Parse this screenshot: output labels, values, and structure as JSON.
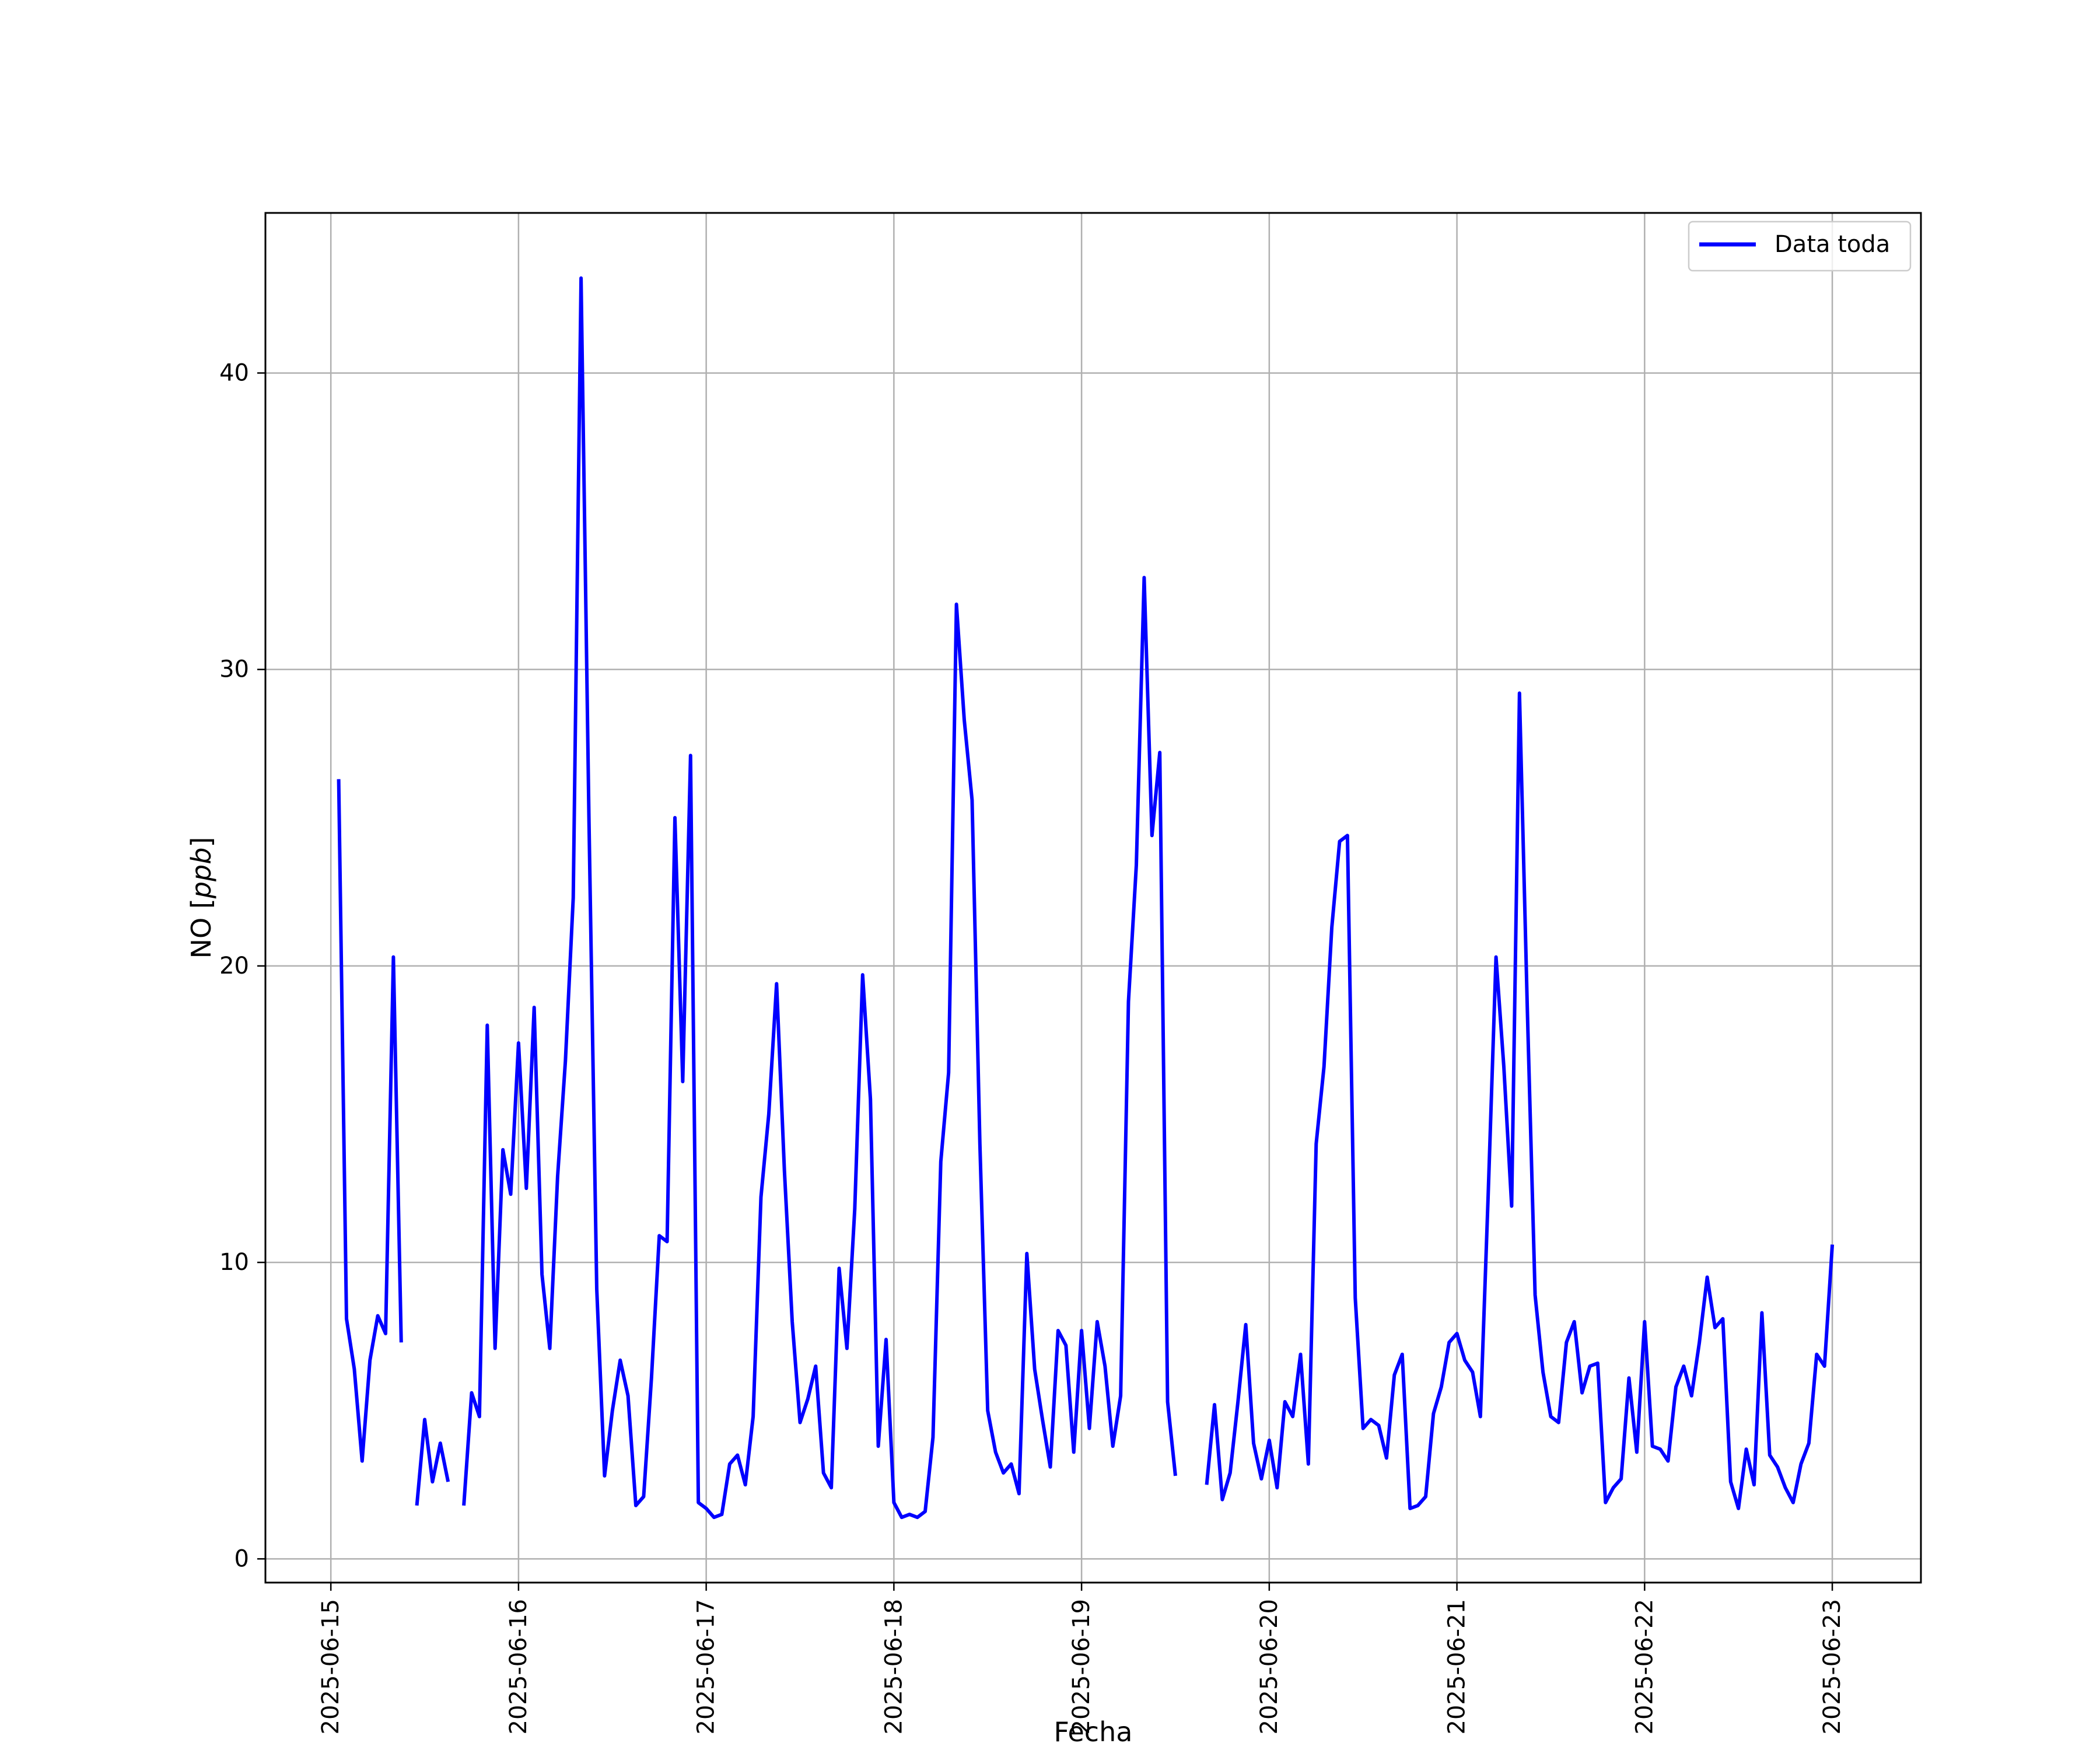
{
  "chart_data": {
    "type": "line",
    "title": "",
    "xlabel": "Fecha",
    "ylabel": "NO [ppb]",
    "ylabel_parts": {
      "main": "NO [",
      "italic": "ppb",
      "close": "]"
    },
    "x_tick_labels": [
      "2025-06-15",
      "2025-06-16",
      "2025-06-17",
      "2025-06-18",
      "2025-06-19",
      "2025-06-20",
      "2025-06-21",
      "2025-06-22",
      "2025-06-23"
    ],
    "y_tick_labels": [
      "0",
      "10",
      "20",
      "30",
      "40"
    ],
    "y_ticks": [
      0,
      10,
      20,
      30,
      40
    ],
    "xlim": [
      "2025-06-14 15:38",
      "2025-06-23 11:20"
    ],
    "ylim": [
      -0.8,
      45.4
    ],
    "grid": true,
    "legend_position": "top-right",
    "series": [
      {
        "name": "Data toda",
        "color": "#0000ff",
        "points": [
          [
            "2025-06-15 01:00",
            26.3
          ],
          [
            "2025-06-15 02:00",
            8.1
          ],
          [
            "2025-06-15 03:00",
            6.4
          ],
          [
            "2025-06-15 04:00",
            3.3
          ],
          [
            "2025-06-15 05:00",
            6.7
          ],
          [
            "2025-06-15 06:00",
            8.2
          ],
          [
            "2025-06-15 07:00",
            7.6
          ],
          [
            "2025-06-15 08:00",
            20.3
          ],
          [
            "2025-06-15 09:00",
            7.3
          ],
          [
            "2025-06-15 10:00",
            null
          ],
          [
            "2025-06-15 11:00",
            1.8
          ],
          [
            "2025-06-15 12:00",
            4.7
          ],
          [
            "2025-06-15 13:00",
            2.6
          ],
          [
            "2025-06-15 14:00",
            3.9
          ],
          [
            "2025-06-15 15:00",
            2.6
          ],
          [
            "2025-06-15 16:00",
            null
          ],
          [
            "2025-06-15 17:00",
            1.8
          ],
          [
            "2025-06-15 18:00",
            5.6
          ],
          [
            "2025-06-15 19:00",
            4.8
          ],
          [
            "2025-06-15 20:00",
            18.0
          ],
          [
            "2025-06-15 21:00",
            7.1
          ],
          [
            "2025-06-15 22:00",
            13.8
          ],
          [
            "2025-06-15 23:00",
            12.3
          ],
          [
            "2025-06-16 00:00",
            17.4
          ],
          [
            "2025-06-16 01:00",
            12.5
          ],
          [
            "2025-06-16 02:00",
            18.6
          ],
          [
            "2025-06-16 03:00",
            9.6
          ],
          [
            "2025-06-16 04:00",
            7.1
          ],
          [
            "2025-06-16 05:00",
            12.9
          ],
          [
            "2025-06-16 06:00",
            16.8
          ],
          [
            "2025-06-16 07:00",
            22.3
          ],
          [
            "2025-06-16 08:00",
            43.2
          ],
          [
            "2025-06-16 09:00",
            25.0
          ],
          [
            "2025-06-16 10:00",
            9.1
          ],
          [
            "2025-06-16 11:00",
            2.8
          ],
          [
            "2025-06-16 12:00",
            5.0
          ],
          [
            "2025-06-16 13:00",
            6.7
          ],
          [
            "2025-06-16 14:00",
            5.5
          ],
          [
            "2025-06-16 15:00",
            1.8
          ],
          [
            "2025-06-16 16:00",
            2.1
          ],
          [
            "2025-06-16 17:00",
            6.1
          ],
          [
            "2025-06-16 18:00",
            10.9
          ],
          [
            "2025-06-16 19:00",
            10.7
          ],
          [
            "2025-06-16 20:00",
            25.0
          ],
          [
            "2025-06-16 21:00",
            16.1
          ],
          [
            "2025-06-16 22:00",
            27.1
          ],
          [
            "2025-06-16 23:00",
            1.9
          ],
          [
            "2025-06-17 00:00",
            1.7
          ],
          [
            "2025-06-17 01:00",
            1.4
          ],
          [
            "2025-06-17 02:00",
            1.5
          ],
          [
            "2025-06-17 03:00",
            3.2
          ],
          [
            "2025-06-17 04:00",
            3.5
          ],
          [
            "2025-06-17 05:00",
            2.5
          ],
          [
            "2025-06-17 06:00",
            4.8
          ],
          [
            "2025-06-17 07:00",
            12.2
          ],
          [
            "2025-06-17 08:00",
            15.0
          ],
          [
            "2025-06-17 09:00",
            19.4
          ],
          [
            "2025-06-17 10:00",
            13.1
          ],
          [
            "2025-06-17 11:00",
            8.0
          ],
          [
            "2025-06-17 12:00",
            4.6
          ],
          [
            "2025-06-17 13:00",
            5.4
          ],
          [
            "2025-06-17 14:00",
            6.5
          ],
          [
            "2025-06-17 15:00",
            2.9
          ],
          [
            "2025-06-17 16:00",
            2.4
          ],
          [
            "2025-06-17 17:00",
            9.8
          ],
          [
            "2025-06-17 18:00",
            7.1
          ],
          [
            "2025-06-17 19:00",
            11.8
          ],
          [
            "2025-06-17 20:00",
            19.7
          ],
          [
            "2025-06-17 21:00",
            15.5
          ],
          [
            "2025-06-17 22:00",
            3.8
          ],
          [
            "2025-06-17 23:00",
            7.4
          ],
          [
            "2025-06-18 00:00",
            1.9
          ],
          [
            "2025-06-18 01:00",
            1.4
          ],
          [
            "2025-06-18 02:00",
            1.5
          ],
          [
            "2025-06-18 03:00",
            1.4
          ],
          [
            "2025-06-18 04:00",
            1.6
          ],
          [
            "2025-06-18 05:00",
            4.1
          ],
          [
            "2025-06-18 06:00",
            13.4
          ],
          [
            "2025-06-18 07:00",
            16.4
          ],
          [
            "2025-06-18 08:00",
            32.2
          ],
          [
            "2025-06-18 09:00",
            28.3
          ],
          [
            "2025-06-18 10:00",
            25.6
          ],
          [
            "2025-06-18 11:00",
            14.0
          ],
          [
            "2025-06-18 12:00",
            5.0
          ],
          [
            "2025-06-18 13:00",
            3.6
          ],
          [
            "2025-06-18 14:00",
            2.9
          ],
          [
            "2025-06-18 15:00",
            3.2
          ],
          [
            "2025-06-18 16:00",
            2.2
          ],
          [
            "2025-06-18 17:00",
            10.3
          ],
          [
            "2025-06-18 18:00",
            6.4
          ],
          [
            "2025-06-18 19:00",
            4.7
          ],
          [
            "2025-06-18 20:00",
            3.1
          ],
          [
            "2025-06-18 21:00",
            7.7
          ],
          [
            "2025-06-18 22:00",
            7.2
          ],
          [
            "2025-06-18 23:00",
            3.6
          ],
          [
            "2025-06-19 00:00",
            7.7
          ],
          [
            "2025-06-19 01:00",
            4.4
          ],
          [
            "2025-06-19 02:00",
            8.0
          ],
          [
            "2025-06-19 03:00",
            6.5
          ],
          [
            "2025-06-19 04:00",
            3.8
          ],
          [
            "2025-06-19 05:00",
            5.5
          ],
          [
            "2025-06-19 06:00",
            18.8
          ],
          [
            "2025-06-19 07:00",
            23.4
          ],
          [
            "2025-06-19 08:00",
            33.1
          ],
          [
            "2025-06-19 09:00",
            24.4
          ],
          [
            "2025-06-19 10:00",
            27.2
          ],
          [
            "2025-06-19 11:00",
            5.3
          ],
          [
            "2025-06-19 12:00",
            2.8
          ],
          [
            "2025-06-19 13:00",
            null
          ],
          [
            "2025-06-19 16:00",
            2.5
          ],
          [
            "2025-06-19 17:00",
            5.2
          ],
          [
            "2025-06-19 18:00",
            2.0
          ],
          [
            "2025-06-19 19:00",
            2.9
          ],
          [
            "2025-06-19 20:00",
            5.3
          ],
          [
            "2025-06-19 21:00",
            7.9
          ],
          [
            "2025-06-19 22:00",
            3.9
          ],
          [
            "2025-06-19 23:00",
            2.7
          ],
          [
            "2025-06-20 00:00",
            4.0
          ],
          [
            "2025-06-20 01:00",
            2.4
          ],
          [
            "2025-06-20 02:00",
            5.3
          ],
          [
            "2025-06-20 03:00",
            4.8
          ],
          [
            "2025-06-20 04:00",
            6.9
          ],
          [
            "2025-06-20 05:00",
            3.2
          ],
          [
            "2025-06-20 06:00",
            14.0
          ],
          [
            "2025-06-20 07:00",
            16.6
          ],
          [
            "2025-06-20 08:00",
            21.3
          ],
          [
            "2025-06-20 09:00",
            24.2
          ],
          [
            "2025-06-20 10:00",
            24.4
          ],
          [
            "2025-06-20 11:00",
            8.8
          ],
          [
            "2025-06-20 12:00",
            4.4
          ],
          [
            "2025-06-20 13:00",
            4.7
          ],
          [
            "2025-06-20 14:00",
            4.5
          ],
          [
            "2025-06-20 15:00",
            3.4
          ],
          [
            "2025-06-20 16:00",
            6.2
          ],
          [
            "2025-06-20 17:00",
            6.9
          ],
          [
            "2025-06-20 18:00",
            1.7
          ],
          [
            "2025-06-20 19:00",
            1.8
          ],
          [
            "2025-06-20 20:00",
            2.1
          ],
          [
            "2025-06-20 21:00",
            4.9
          ],
          [
            "2025-06-20 22:00",
            5.8
          ],
          [
            "2025-06-20 23:00",
            7.3
          ],
          [
            "2025-06-21 00:00",
            7.6
          ],
          [
            "2025-06-21 01:00",
            6.7
          ],
          [
            "2025-06-21 02:00",
            6.3
          ],
          [
            "2025-06-21 03:00",
            4.8
          ],
          [
            "2025-06-21 04:00",
            12.3
          ],
          [
            "2025-06-21 05:00",
            20.3
          ],
          [
            "2025-06-21 06:00",
            16.6
          ],
          [
            "2025-06-21 07:00",
            11.9
          ],
          [
            "2025-06-21 08:00",
            29.2
          ],
          [
            "2025-06-21 09:00",
            18.6
          ],
          [
            "2025-06-21 10:00",
            8.9
          ],
          [
            "2025-06-21 11:00",
            6.3
          ],
          [
            "2025-06-21 12:00",
            4.8
          ],
          [
            "2025-06-21 13:00",
            4.6
          ],
          [
            "2025-06-21 14:00",
            7.3
          ],
          [
            "2025-06-21 15:00",
            8.0
          ],
          [
            "2025-06-21 16:00",
            5.6
          ],
          [
            "2025-06-21 17:00",
            6.5
          ],
          [
            "2025-06-21 18:00",
            6.6
          ],
          [
            "2025-06-21 19:00",
            1.9
          ],
          [
            "2025-06-21 20:00",
            2.4
          ],
          [
            "2025-06-21 21:00",
            2.7
          ],
          [
            "2025-06-21 22:00",
            6.1
          ],
          [
            "2025-06-21 23:00",
            3.6
          ],
          [
            "2025-06-22 00:00",
            8.0
          ],
          [
            "2025-06-22 01:00",
            3.8
          ],
          [
            "2025-06-22 02:00",
            3.7
          ],
          [
            "2025-06-22 03:00",
            3.3
          ],
          [
            "2025-06-22 04:00",
            5.8
          ],
          [
            "2025-06-22 05:00",
            6.5
          ],
          [
            "2025-06-22 06:00",
            5.5
          ],
          [
            "2025-06-22 07:00",
            7.3
          ],
          [
            "2025-06-22 08:00",
            9.5
          ],
          [
            "2025-06-22 09:00",
            7.8
          ],
          [
            "2025-06-22 10:00",
            8.1
          ],
          [
            "2025-06-22 11:00",
            2.6
          ],
          [
            "2025-06-22 12:00",
            1.7
          ],
          [
            "2025-06-22 13:00",
            3.7
          ],
          [
            "2025-06-22 14:00",
            2.5
          ],
          [
            "2025-06-22 15:00",
            8.3
          ],
          [
            "2025-06-22 16:00",
            3.5
          ],
          [
            "2025-06-22 17:00",
            3.1
          ],
          [
            "2025-06-22 18:00",
            2.4
          ],
          [
            "2025-06-22 19:00",
            1.9
          ],
          [
            "2025-06-22 20:00",
            3.2
          ],
          [
            "2025-06-22 21:00",
            3.9
          ],
          [
            "2025-06-22 22:00",
            6.9
          ],
          [
            "2025-06-22 23:00",
            6.5
          ],
          [
            "2025-06-23 00:00",
            10.6
          ]
        ]
      }
    ]
  }
}
